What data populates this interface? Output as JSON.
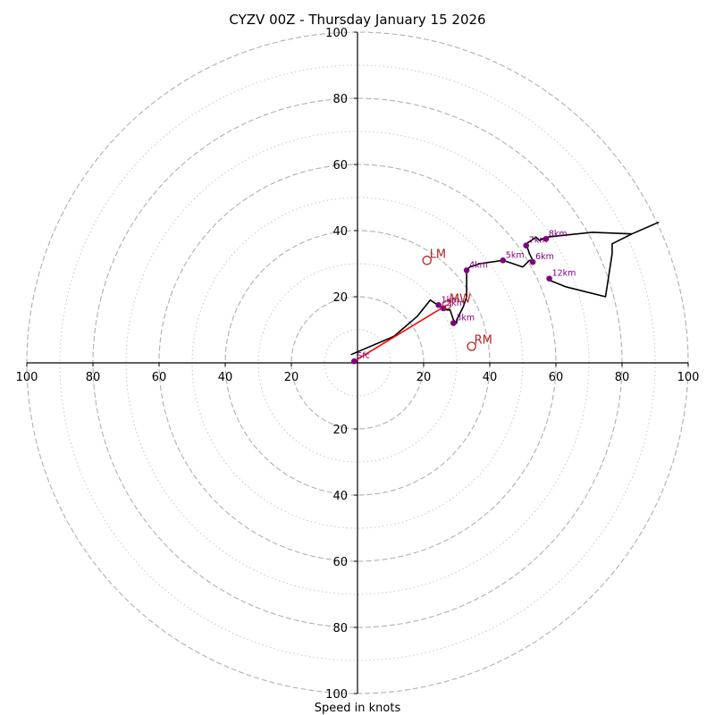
{
  "chart_data": {
    "type": "hodograph",
    "title": "CYZV 00Z - Thursday January 15 2026",
    "xlabel": "Speed in knots",
    "ylabel": "",
    "xlim": [
      -100,
      100
    ],
    "ylim": [
      -100,
      100
    ],
    "dashed_rings": [
      20,
      40,
      60,
      80,
      100
    ],
    "dotted_rings": [
      10,
      30,
      50,
      70,
      90
    ],
    "x_tick_values": [
      -100,
      -80,
      -60,
      -40,
      -20,
      20,
      40,
      60,
      80,
      100
    ],
    "x_tick_labels": [
      "100",
      "80",
      "60",
      "40",
      "20",
      "20",
      "40",
      "60",
      "80",
      "100"
    ],
    "y_tick_values": [
      100,
      80,
      60,
      40,
      20,
      -20,
      -40,
      -60,
      -80,
      -100
    ],
    "y_tick_labels": [
      "100",
      "80",
      "60",
      "40",
      "20",
      "20",
      "40",
      "60",
      "80",
      "100"
    ],
    "hodograph_line": [
      [
        -2,
        2.5
      ],
      [
        11,
        8
      ],
      [
        18,
        14
      ],
      [
        22,
        19
      ],
      [
        25,
        17
      ],
      [
        27,
        16
      ],
      [
        28,
        16
      ],
      [
        29,
        13
      ],
      [
        30,
        12
      ],
      [
        30,
        13
      ],
      [
        31,
        15
      ],
      [
        32,
        17
      ],
      [
        33,
        20
      ],
      [
        33,
        22
      ],
      [
        33,
        24
      ],
      [
        33,
        26
      ],
      [
        33,
        28
      ],
      [
        34,
        29
      ],
      [
        37,
        30
      ],
      [
        44,
        31
      ],
      [
        50,
        29
      ],
      [
        52,
        31
      ],
      [
        53,
        31
      ],
      [
        52,
        33
      ],
      [
        51,
        36
      ],
      [
        54,
        38
      ],
      [
        55,
        37
      ],
      [
        57,
        38
      ],
      [
        71,
        39.5
      ],
      [
        83,
        39
      ],
      [
        91,
        42.5
      ],
      [
        83,
        39
      ],
      [
        77,
        36
      ],
      [
        77,
        33
      ],
      [
        75,
        20
      ],
      [
        63,
        23
      ],
      [
        58,
        25
      ]
    ],
    "height_markers": [
      {
        "label": "Sfc",
        "u": -1,
        "v": 0.5
      },
      {
        "label": "1km",
        "u": 24.5,
        "v": 17.5
      },
      {
        "label": "2km",
        "u": 26,
        "v": 16.5
      },
      {
        "label": "3km",
        "u": 29,
        "v": 12
      },
      {
        "label": "4km",
        "u": 33,
        "v": 28
      },
      {
        "label": "5km",
        "u": 44,
        "v": 31
      },
      {
        "label": "6km",
        "u": 53,
        "v": 30.5
      },
      {
        "label": "7km",
        "u": 51,
        "v": 35.5
      },
      {
        "label": "8km",
        "u": 57,
        "v": 37.5
      },
      {
        "label": "12km",
        "u": 58,
        "v": 25.5
      }
    ],
    "mean_wind_vector": {
      "from": [
        -1,
        0.5
      ],
      "to": [
        27,
        17.5
      ]
    },
    "storm_motions": [
      {
        "label": "LM",
        "u": 21,
        "v": 31
      },
      {
        "label": "MW",
        "u": 27,
        "v": 17.5
      },
      {
        "label": "RM",
        "u": 34.5,
        "v": 5
      }
    ],
    "colors": {
      "ring": "#b0b0b0",
      "axis": "#000000",
      "hodograph": "#000000",
      "marker": "#800080",
      "marker_text": "#800080",
      "mean_wind": "#ff0000",
      "storm": "#b22222"
    }
  }
}
